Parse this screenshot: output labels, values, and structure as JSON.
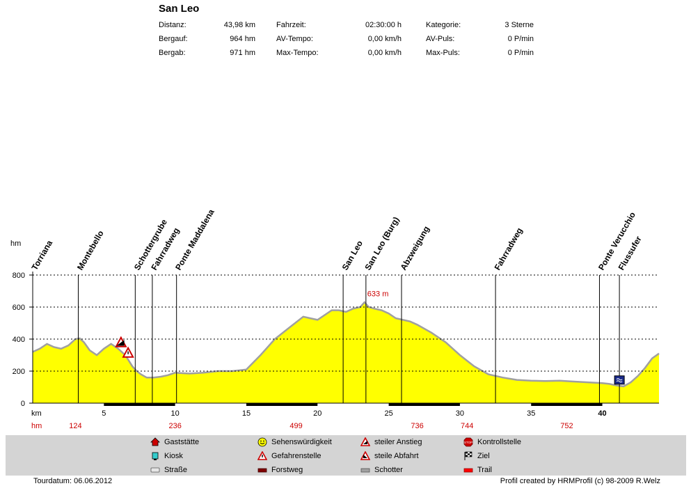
{
  "tour": {
    "title": "San Leo",
    "stats": [
      {
        "label": "Distanz:",
        "value": "43,98 km"
      },
      {
        "label": "Bergauf:",
        "value": "964 hm"
      },
      {
        "label": "Bergab:",
        "value": "971 hm"
      },
      {
        "label": "Fahrzeit:",
        "value": "02:30:00 h"
      },
      {
        "label": "AV-Tempo:",
        "value": "0,00 km/h"
      },
      {
        "label": "Max-Tempo:",
        "value": "0,00 km/h"
      },
      {
        "label": "Kategorie:",
        "value": "3 Sterne"
      },
      {
        "label": "AV-Puls:",
        "value": "0 P/min"
      },
      {
        "label": "Max-Puls:",
        "value": "0 P/min"
      }
    ],
    "date": "Tourdatum: 06.06.2012",
    "credit": "Profil created by HRMProfil (c) 98-2009 R.Welz"
  },
  "chart_data": {
    "type": "area",
    "ylabel": "hm",
    "xlabel": "km",
    "xlim": [
      0,
      43.98
    ],
    "ylim": [
      0,
      800
    ],
    "grid": true,
    "yticks": [
      0,
      200,
      400,
      600,
      800
    ],
    "xticks": [
      5,
      10,
      15,
      20,
      25,
      30,
      35,
      40
    ],
    "x": [
      0,
      0.5,
      1.0,
      1.5,
      2.0,
      2.5,
      3.0,
      3.3,
      3.6,
      4.0,
      4.5,
      5.0,
      5.5,
      6.0,
      6.5,
      7.0,
      7.3,
      7.6,
      8.0,
      8.5,
      9.0,
      9.5,
      10.0,
      11.0,
      12.0,
      13.0,
      14.0,
      15.0,
      16.0,
      17.0,
      18.0,
      19.0,
      19.5,
      20.0,
      20.5,
      21.0,
      21.5,
      22.0,
      22.5,
      23.0,
      23.3,
      23.6,
      24.0,
      24.5,
      25.0,
      25.5,
      26.0,
      26.5,
      27.0,
      28.0,
      29.0,
      30.0,
      31.0,
      32.0,
      33.0,
      34.0,
      35.0,
      36.0,
      37.0,
      38.0,
      39.0,
      40.0,
      40.5,
      41.0,
      41.5,
      42.0,
      42.5,
      43.0,
      43.5,
      43.98
    ],
    "y": [
      320,
      340,
      370,
      350,
      340,
      360,
      400,
      405,
      380,
      330,
      300,
      340,
      370,
      340,
      300,
      230,
      200,
      180,
      160,
      160,
      165,
      175,
      190,
      185,
      190,
      200,
      200,
      210,
      300,
      400,
      470,
      540,
      530,
      520,
      550,
      580,
      580,
      570,
      590,
      600,
      630,
      600,
      590,
      580,
      560,
      530,
      520,
      510,
      490,
      440,
      380,
      300,
      230,
      180,
      160,
      145,
      140,
      138,
      140,
      135,
      130,
      125,
      120,
      110,
      105,
      130,
      170,
      220,
      280,
      310
    ],
    "peak_label": "633 m",
    "peak_km": 23.3,
    "peak_hm": 633,
    "segment_labels": [
      {
        "km": 3,
        "value": "124"
      },
      {
        "km": 10,
        "value": "236"
      },
      {
        "km": 18.5,
        "value": "499"
      },
      {
        "km": 27,
        "value": "736"
      },
      {
        "km": 30.5,
        "value": "744"
      },
      {
        "km": 37.5,
        "value": "752"
      }
    ],
    "waypoints": [
      {
        "km": 0.0,
        "name": "Torriana"
      },
      {
        "km": 3.2,
        "name": "Montebello"
      },
      {
        "km": 7.2,
        "name": "Schottergrube"
      },
      {
        "km": 8.4,
        "name": "Fahrradweg"
      },
      {
        "km": 10.1,
        "name": "Ponte Maddalena"
      },
      {
        "km": 21.8,
        "name": "San Leo"
      },
      {
        "km": 23.4,
        "name": "San Leo (Burg)"
      },
      {
        "km": 25.9,
        "name": "Abzweigung"
      },
      {
        "km": 32.5,
        "name": "Fahrradweg"
      },
      {
        "km": 39.8,
        "name": "Ponte Verucchio"
      },
      {
        "km": 41.2,
        "name": "Flussufer"
      }
    ],
    "markers": [
      {
        "km": 6.2,
        "hm": 375,
        "type": "steiler Anstieg"
      },
      {
        "km": 6.7,
        "hm": 310,
        "type": "Gefahrenstelle"
      },
      {
        "km": 41.2,
        "hm": 140,
        "type": "Ziel"
      }
    ],
    "km_bar": true
  },
  "legend": [
    {
      "label": "Gaststätte",
      "icon": "house-icon",
      "color": "#cc0000"
    },
    {
      "label": "Kiosk",
      "icon": "kiosk-icon",
      "color": "#33cccc"
    },
    {
      "label": "Straße",
      "icon": "road-icon",
      "color": "#e6e6e6"
    },
    {
      "label": "Sehenswürdigkeit",
      "icon": "smiley-icon",
      "color": "#ffff00"
    },
    {
      "label": "Gefahrenstelle",
      "icon": "warning-icon",
      "color": "#cc0000"
    },
    {
      "label": "Forstweg",
      "icon": "forest-path-icon",
      "color": "#800000"
    },
    {
      "label": "steiler Anstieg",
      "icon": "steep-up-icon",
      "color": "#cc0000"
    },
    {
      "label": "steile Abfahrt",
      "icon": "steep-down-icon",
      "color": "#cc0000"
    },
    {
      "label": "Schotter",
      "icon": "gravel-icon",
      "color": "#a0a0a0"
    },
    {
      "label": "Kontrollstelle",
      "icon": "stop-icon",
      "color": "#cc0000"
    },
    {
      "label": "Ziel",
      "icon": "finish-flag-icon",
      "color": "#000000"
    },
    {
      "label": "Trail",
      "icon": "trail-icon",
      "color": "#ff0000"
    }
  ]
}
